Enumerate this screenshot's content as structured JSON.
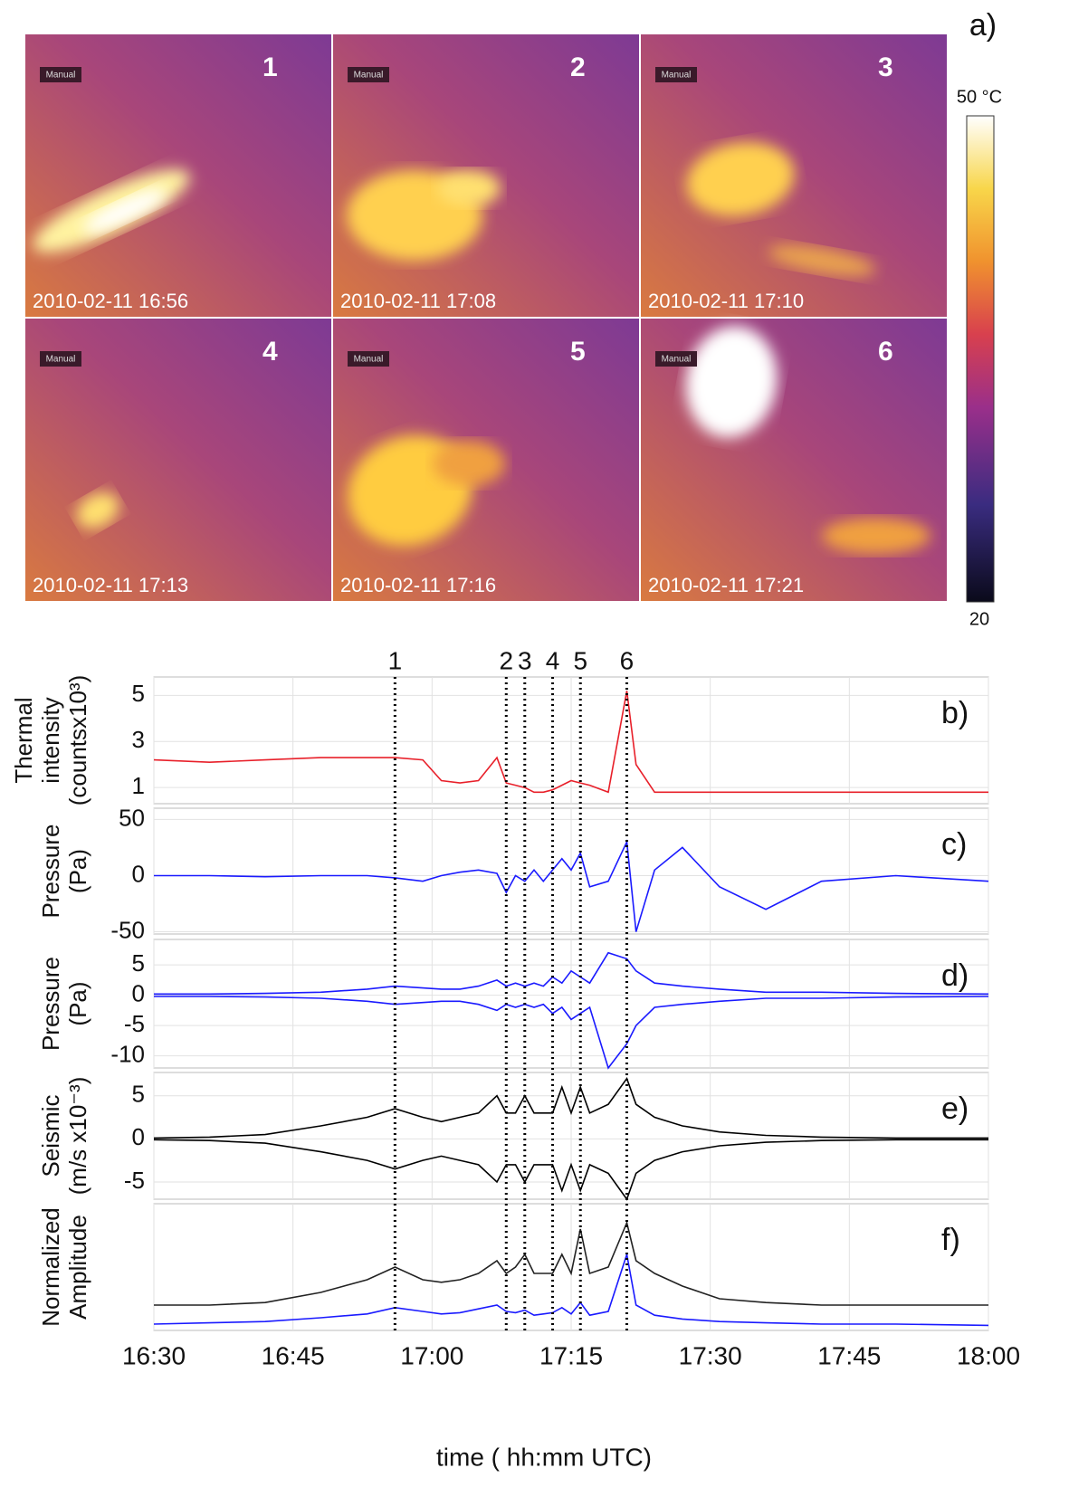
{
  "images": [
    {
      "tag": "Manual",
      "number": "1",
      "timestamp": "2010-02-11 16:56"
    },
    {
      "tag": "Manual",
      "number": "2",
      "timestamp": "2010-02-11 17:08"
    },
    {
      "tag": "Manual",
      "number": "3",
      "timestamp": "2010-02-11 17:10"
    },
    {
      "tag": "Manual",
      "number": "4",
      "timestamp": "2010-02-11 17:13"
    },
    {
      "tag": "Manual",
      "number": "5",
      "timestamp": "2010-02-11 17:16"
    },
    {
      "tag": "Manual",
      "number": "6",
      "timestamp": "2010-02-11 17:21"
    }
  ],
  "colorbar": {
    "label": "a)",
    "max": "50 °C",
    "min": "20"
  },
  "events": [
    {
      "label": "1",
      "time": "16:56"
    },
    {
      "label": "2",
      "time": "17:08"
    },
    {
      "label": "3",
      "time": "17:10"
    },
    {
      "label": "4",
      "time": "17:13"
    },
    {
      "label": "5",
      "time": "17:16"
    },
    {
      "label": "6",
      "time": "17:21"
    }
  ],
  "chart_data": [
    {
      "type": "line",
      "label": "b)",
      "ylabel": [
        "Thermal",
        "intensity",
        "(countsx10³)"
      ],
      "x": [
        "16:30",
        "16:36",
        "16:42",
        "16:48",
        "16:53",
        "16:56",
        "16:59",
        "17:01",
        "17:03",
        "17:05",
        "17:07",
        "17:08",
        "17:09",
        "17:10",
        "17:11",
        "17:12",
        "17:13",
        "17:14",
        "17:15",
        "17:16",
        "17:17",
        "17:19",
        "17:21",
        "17:22",
        "17:24",
        "17:27",
        "17:31",
        "17:36",
        "17:42",
        "17:50",
        "18:00"
      ],
      "series": [
        {
          "color": "#e8202a",
          "values": [
            2.2,
            2.1,
            2.2,
            2.3,
            2.3,
            2.3,
            2.2,
            1.3,
            1.2,
            1.3,
            2.3,
            1.2,
            1.1,
            1.0,
            0.8,
            0.8,
            0.9,
            1.1,
            1.3,
            1.2,
            1.1,
            0.8,
            5.2,
            2.0,
            0.8,
            0.8,
            0.8,
            0.8,
            0.8,
            0.8,
            0.8
          ]
        }
      ],
      "ylim": [
        0.3,
        5.8
      ],
      "yticks": [
        1,
        3,
        5
      ]
    },
    {
      "type": "line",
      "label": "c)",
      "ylabel": [
        "Pressure",
        "(Pa)"
      ],
      "x": [
        "16:30",
        "16:36",
        "16:42",
        "16:48",
        "16:53",
        "16:56",
        "16:59",
        "17:01",
        "17:03",
        "17:05",
        "17:07",
        "17:08",
        "17:09",
        "17:10",
        "17:11",
        "17:12",
        "17:13",
        "17:14",
        "17:15",
        "17:16",
        "17:17",
        "17:19",
        "17:21",
        "17:22",
        "17:24",
        "17:27",
        "17:31",
        "17:36",
        "17:42",
        "17:50",
        "18:00"
      ],
      "series": [
        {
          "color": "#1a1aff",
          "values": [
            0,
            0,
            -1,
            0,
            0,
            -2,
            -5,
            0,
            3,
            5,
            2,
            -15,
            0,
            -5,
            5,
            -5,
            5,
            15,
            5,
            20,
            -10,
            -5,
            30,
            -50,
            5,
            25,
            -10,
            -30,
            -5,
            0,
            -5
          ]
        }
      ],
      "ylim": [
        -52,
        60
      ],
      "yticks": [
        -50,
        0,
        50
      ]
    },
    {
      "type": "line",
      "label": "d)",
      "ylabel": [
        "Pressure",
        "(Pa)"
      ],
      "x": [
        "16:30",
        "16:36",
        "16:42",
        "16:48",
        "16:53",
        "16:56",
        "16:59",
        "17:01",
        "17:03",
        "17:05",
        "17:07",
        "17:08",
        "17:09",
        "17:10",
        "17:11",
        "17:12",
        "17:13",
        "17:14",
        "17:15",
        "17:16",
        "17:17",
        "17:19",
        "17:21",
        "17:22",
        "17:24",
        "17:27",
        "17:31",
        "17:36",
        "17:42",
        "17:50",
        "18:00"
      ],
      "series": [
        {
          "color": "#1a1aff",
          "values": [
            0.2,
            0.2,
            0.3,
            0.5,
            1,
            1.5,
            1.2,
            1,
            1,
            1.5,
            2.5,
            1.5,
            2,
            1.5,
            2,
            1.5,
            3,
            2,
            4,
            3,
            2,
            7,
            6,
            4,
            2,
            1.5,
            1,
            0.5,
            0.5,
            0.3,
            0.2
          ]
        },
        {
          "color": "#1a1aff",
          "values": [
            -0.2,
            -0.2,
            -0.3,
            -0.5,
            -1,
            -1.5,
            -1.2,
            -1,
            -1,
            -1.5,
            -2.5,
            -1.5,
            -2,
            -1.5,
            -2,
            -1.5,
            -3,
            -2,
            -4,
            -3,
            -2,
            -12,
            -8,
            -5,
            -2,
            -1.5,
            -1,
            -0.5,
            -0.5,
            -0.3,
            -0.2
          ]
        }
      ],
      "ylim": [
        -12,
        9.2
      ],
      "yticks": [
        5,
        0,
        -5,
        -10
      ]
    },
    {
      "type": "line",
      "label": "e)",
      "ylabel": [
        "Seismic",
        "(m/s x10⁻³)"
      ],
      "x": [
        "16:30",
        "16:36",
        "16:42",
        "16:48",
        "16:53",
        "16:56",
        "16:59",
        "17:01",
        "17:03",
        "17:05",
        "17:07",
        "17:08",
        "17:09",
        "17:10",
        "17:11",
        "17:12",
        "17:13",
        "17:14",
        "17:15",
        "17:16",
        "17:17",
        "17:19",
        "17:21",
        "17:22",
        "17:24",
        "17:27",
        "17:31",
        "17:36",
        "17:42",
        "17:50",
        "18:00"
      ],
      "series": [
        {
          "color": "#000000",
          "values": [
            0.1,
            0.2,
            0.5,
            1.5,
            2.5,
            3.5,
            2.5,
            2,
            2.5,
            3,
            5,
            3,
            3,
            5,
            3,
            3,
            3,
            6,
            3,
            6,
            3,
            4,
            7,
            4,
            2.5,
            1.5,
            0.8,
            0.4,
            0.2,
            0.1,
            0.1
          ]
        },
        {
          "color": "#000000",
          "values": [
            -0.1,
            -0.2,
            -0.5,
            -1.5,
            -2.5,
            -3.5,
            -2.5,
            -2,
            -2.5,
            -3,
            -5,
            -3,
            -3,
            -5,
            -3,
            -3,
            -3,
            -6,
            -3,
            -6,
            -3,
            -4,
            -7,
            -4,
            -2.5,
            -1.5,
            -0.8,
            -0.4,
            -0.2,
            -0.1,
            -0.1
          ]
        }
      ],
      "ylim": [
        -7,
        7.7
      ],
      "yticks": [
        5,
        0,
        -5
      ]
    },
    {
      "type": "line",
      "label": "f)",
      "ylabel": [
        "Normalized",
        "Amplitude"
      ],
      "xlabel": "time ( hh:mm UTC)",
      "x": [
        "16:30",
        "16:36",
        "16:42",
        "16:48",
        "16:53",
        "16:56",
        "16:59",
        "17:01",
        "17:03",
        "17:05",
        "17:07",
        "17:08",
        "17:09",
        "17:10",
        "17:11",
        "17:12",
        "17:13",
        "17:14",
        "17:15",
        "17:16",
        "17:17",
        "17:19",
        "17:21",
        "17:22",
        "17:24",
        "17:27",
        "17:31",
        "17:36",
        "17:42",
        "17:50",
        "18:00"
      ],
      "series": [
        {
          "color": "#222222",
          "values": [
            0.2,
            0.2,
            0.22,
            0.3,
            0.4,
            0.5,
            0.4,
            0.38,
            0.4,
            0.45,
            0.55,
            0.45,
            0.5,
            0.6,
            0.45,
            0.45,
            0.45,
            0.6,
            0.45,
            0.8,
            0.45,
            0.5,
            0.85,
            0.55,
            0.45,
            0.35,
            0.25,
            0.22,
            0.2,
            0.2,
            0.2
          ]
        },
        {
          "color": "#1a1aff",
          "values": [
            0.05,
            0.06,
            0.07,
            0.1,
            0.13,
            0.18,
            0.15,
            0.13,
            0.14,
            0.17,
            0.2,
            0.15,
            0.14,
            0.16,
            0.12,
            0.13,
            0.14,
            0.18,
            0.13,
            0.22,
            0.12,
            0.15,
            0.6,
            0.2,
            0.12,
            0.09,
            0.07,
            0.06,
            0.05,
            0.05,
            0.04
          ]
        }
      ],
      "ylim": [
        0,
        1
      ],
      "xlim": [
        "16:30",
        "18:00"
      ],
      "xticks": [
        "16:30",
        "16:45",
        "17:00",
        "17:15",
        "17:30",
        "17:45",
        "18:00"
      ]
    }
  ]
}
